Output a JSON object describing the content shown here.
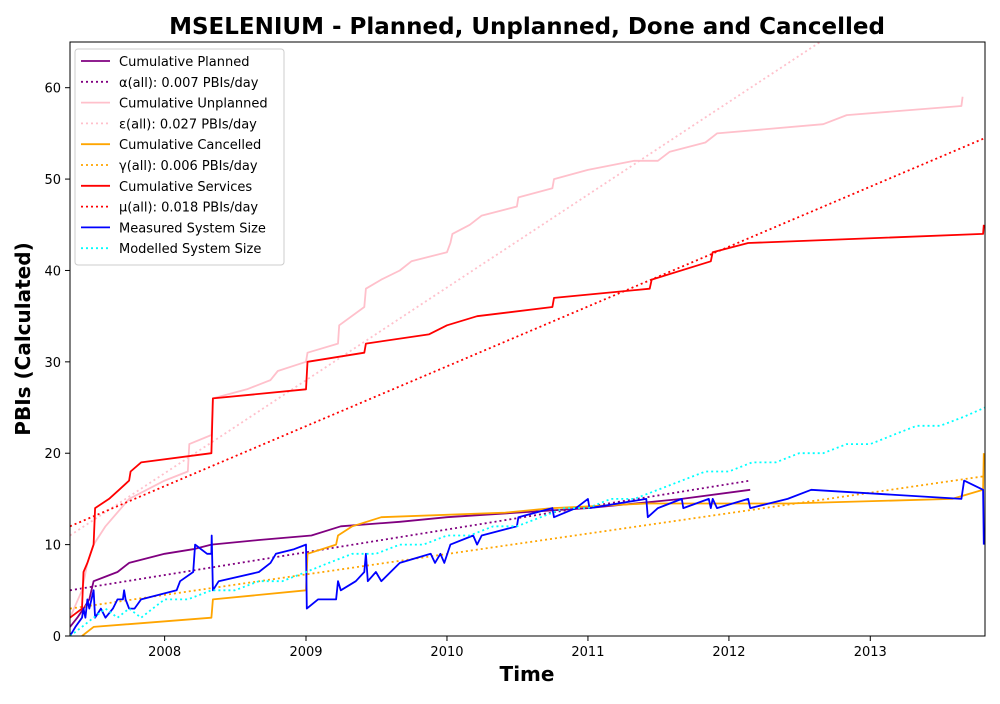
{
  "chart_data": {
    "type": "line",
    "title": "MSELENIUM - Planned, Unplanned, Done  and Cancelled",
    "xlabel": "Time",
    "ylabel": "PBIs (Calculated)",
    "xlim": [
      "2007-05-01",
      "2013-10-25"
    ],
    "ylim": [
      0,
      65
    ],
    "x_ticks": [
      {
        "date": "2008-01-01",
        "label": "2008"
      },
      {
        "date": "2009-01-01",
        "label": "2009"
      },
      {
        "date": "2010-01-01",
        "label": "2010"
      },
      {
        "date": "2011-01-01",
        "label": "2011"
      },
      {
        "date": "2012-01-01",
        "label": "2012"
      },
      {
        "date": "2013-01-01",
        "label": "2013"
      }
    ],
    "y_ticks": [
      0,
      10,
      20,
      30,
      40,
      50,
      60
    ],
    "grid": false,
    "legend_position": "top-left",
    "series": [
      {
        "name": "Cumulative Planned",
        "color": "#800080",
        "style": "solid",
        "points": [
          [
            "2007-05-01",
            1
          ],
          [
            "2007-05-20",
            2
          ],
          [
            "2007-06-05",
            3
          ],
          [
            "2007-06-20",
            4
          ],
          [
            "2007-07-01",
            6
          ],
          [
            "2007-08-01",
            6.5
          ],
          [
            "2007-09-01",
            7
          ],
          [
            "2007-10-01",
            8
          ],
          [
            "2008-01-01",
            9
          ],
          [
            "2008-03-15",
            9.5
          ],
          [
            "2008-05-01",
            10
          ],
          [
            "2008-09-01",
            10.5
          ],
          [
            "2009-01-15",
            11
          ],
          [
            "2009-04-01",
            12
          ],
          [
            "2009-09-01",
            12.5
          ],
          [
            "2010-01-01",
            13
          ],
          [
            "2011-01-01",
            14
          ],
          [
            "2011-09-01",
            15
          ],
          [
            "2012-02-25",
            16
          ]
        ]
      },
      {
        "name": "α(all): 0.007 PBIs/day",
        "color": "#800080",
        "style": "dotted",
        "points": [
          [
            "2007-05-01",
            5
          ],
          [
            "2012-02-25",
            17
          ]
        ]
      },
      {
        "name": "Cumulative Unplanned",
        "color": "#ffc0cb",
        "style": "solid",
        "points": [
          [
            "2007-05-01",
            2
          ],
          [
            "2007-06-01",
            5
          ],
          [
            "2007-06-15",
            8
          ],
          [
            "2007-07-01",
            10
          ],
          [
            "2007-08-01",
            12
          ],
          [
            "2007-10-01",
            15
          ],
          [
            "2008-01-01",
            17
          ],
          [
            "2008-03-01",
            18
          ],
          [
            "2008-03-05",
            21
          ],
          [
            "2008-05-01",
            22
          ],
          [
            "2008-05-05",
            26
          ],
          [
            "2008-08-01",
            27
          ],
          [
            "2008-10-01",
            28
          ],
          [
            "2008-10-20",
            29
          ],
          [
            "2009-01-01",
            30
          ],
          [
            "2009-01-05",
            31
          ],
          [
            "2009-03-25",
            32
          ],
          [
            "2009-03-28",
            34
          ],
          [
            "2009-06-01",
            36
          ],
          [
            "2009-06-05",
            38
          ],
          [
            "2009-07-15",
            39
          ],
          [
            "2009-09-01",
            40
          ],
          [
            "2009-10-01",
            41
          ],
          [
            "2010-01-01",
            42
          ],
          [
            "2010-01-10",
            43
          ],
          [
            "2010-01-15",
            44
          ],
          [
            "2010-03-01",
            45
          ],
          [
            "2010-04-01",
            46
          ],
          [
            "2010-07-01",
            47
          ],
          [
            "2010-07-05",
            48
          ],
          [
            "2010-10-01",
            49
          ],
          [
            "2010-10-05",
            50
          ],
          [
            "2011-01-01",
            51
          ],
          [
            "2011-05-01",
            52
          ],
          [
            "2011-07-01",
            52
          ],
          [
            "2011-08-01",
            53
          ],
          [
            "2011-11-01",
            54
          ],
          [
            "2011-12-01",
            55
          ],
          [
            "2012-09-01",
            56
          ],
          [
            "2012-11-01",
            57
          ],
          [
            "2013-08-25",
            58
          ],
          [
            "2013-08-28",
            59
          ]
        ]
      },
      {
        "name": "ε(all): 0.027 PBIs/day",
        "color": "#ffc0cb",
        "style": "dotted",
        "points": [
          [
            "2007-05-01",
            11
          ],
          [
            "2012-08-24",
            65
          ]
        ]
      },
      {
        "name": "Cumulative Cancelled",
        "color": "#ffa500",
        "style": "solid",
        "points": [
          [
            "2007-06-01",
            0
          ],
          [
            "2007-07-01",
            1
          ],
          [
            "2008-05-01",
            2
          ],
          [
            "2008-05-05",
            4
          ],
          [
            "2009-01-01",
            5
          ],
          [
            "2009-01-05",
            9
          ],
          [
            "2009-03-20",
            10
          ],
          [
            "2009-03-25",
            11
          ],
          [
            "2009-05-01",
            12
          ],
          [
            "2009-07-15",
            13
          ],
          [
            "2010-06-01",
            13.5
          ],
          [
            "2010-10-01",
            14
          ],
          [
            "2011-06-01",
            14.5
          ],
          [
            "2012-06-01",
            14.5
          ],
          [
            "2013-08-01",
            15
          ],
          [
            "2013-10-20",
            16
          ],
          [
            "2013-10-22",
            20
          ]
        ]
      },
      {
        "name": "γ(all): 0.006 PBIs/day",
        "color": "#ffa500",
        "style": "dotted",
        "points": [
          [
            "2007-05-01",
            3
          ],
          [
            "2013-10-25",
            17.5
          ]
        ]
      },
      {
        "name": "Cumulative Services",
        "color": "#ff0000",
        "style": "solid",
        "points": [
          [
            "2007-05-01",
            2
          ],
          [
            "2007-06-01",
            3
          ],
          [
            "2007-06-05",
            7
          ],
          [
            "2007-06-15",
            8
          ],
          [
            "2007-07-01",
            10
          ],
          [
            "2007-07-05",
            14
          ],
          [
            "2007-08-10",
            15
          ],
          [
            "2007-09-05",
            16
          ],
          [
            "2007-10-01",
            17
          ],
          [
            "2007-10-05",
            18
          ],
          [
            "2007-11-01",
            19
          ],
          [
            "2008-05-01",
            20
          ],
          [
            "2008-05-05",
            26
          ],
          [
            "2009-01-01",
            27
          ],
          [
            "2009-01-05",
            30
          ],
          [
            "2009-06-01",
            31
          ],
          [
            "2009-06-05",
            32
          ],
          [
            "2009-11-15",
            33
          ],
          [
            "2010-01-01",
            34
          ],
          [
            "2010-03-20",
            35
          ],
          [
            "2010-10-01",
            36
          ],
          [
            "2010-10-05",
            37
          ],
          [
            "2011-06-10",
            38
          ],
          [
            "2011-06-15",
            39
          ],
          [
            "2011-11-15",
            41
          ],
          [
            "2011-11-20",
            42
          ],
          [
            "2012-02-20",
            43
          ],
          [
            "2013-10-20",
            44
          ],
          [
            "2013-10-22",
            45
          ]
        ]
      },
      {
        "name": "μ(all): 0.018 PBIs/day",
        "color": "#ff0000",
        "style": "dotted",
        "points": [
          [
            "2007-05-01",
            12
          ],
          [
            "2013-10-25",
            54.5
          ]
        ]
      },
      {
        "name": "Measured System Size",
        "color": "#0000ff",
        "style": "solid",
        "points": [
          [
            "2007-05-01",
            0
          ],
          [
            "2007-05-15",
            1
          ],
          [
            "2007-06-01",
            2
          ],
          [
            "2007-06-05",
            3
          ],
          [
            "2007-06-10",
            2
          ],
          [
            "2007-06-15",
            4
          ],
          [
            "2007-06-20",
            3
          ],
          [
            "2007-07-01",
            5
          ],
          [
            "2007-07-05",
            2
          ],
          [
            "2007-07-20",
            3
          ],
          [
            "2007-08-01",
            2
          ],
          [
            "2007-08-20",
            3
          ],
          [
            "2007-09-01",
            4
          ],
          [
            "2007-09-15",
            4
          ],
          [
            "2007-09-18",
            5
          ],
          [
            "2007-09-22",
            4
          ],
          [
            "2007-10-01",
            3
          ],
          [
            "2007-10-15",
            3
          ],
          [
            "2007-11-01",
            4
          ],
          [
            "2008-02-01",
            5
          ],
          [
            "2008-02-10",
            6
          ],
          [
            "2008-03-15",
            7
          ],
          [
            "2008-03-20",
            10
          ],
          [
            "2008-04-20",
            9
          ],
          [
            "2008-05-01",
            9
          ],
          [
            "2008-05-02",
            11
          ],
          [
            "2008-05-05",
            5
          ],
          [
            "2008-05-20",
            6
          ],
          [
            "2008-09-01",
            7
          ],
          [
            "2008-10-01",
            8
          ],
          [
            "2008-10-15",
            9
          ],
          [
            "2008-12-01",
            9.5
          ],
          [
            "2009-01-01",
            10
          ],
          [
            "2009-01-03",
            3
          ],
          [
            "2009-02-01",
            4
          ],
          [
            "2009-03-20",
            4
          ],
          [
            "2009-03-25",
            6
          ],
          [
            "2009-04-01",
            5
          ],
          [
            "2009-05-10",
            6
          ],
          [
            "2009-06-01",
            7
          ],
          [
            "2009-06-05",
            9
          ],
          [
            "2009-06-10",
            6
          ],
          [
            "2009-07-01",
            7
          ],
          [
            "2009-07-15",
            6
          ],
          [
            "2009-09-01",
            8
          ],
          [
            "2009-11-20",
            9
          ],
          [
            "2009-12-01",
            8
          ],
          [
            "2009-12-15",
            9
          ],
          [
            "2009-12-25",
            8
          ],
          [
            "2010-01-10",
            10
          ],
          [
            "2010-03-10",
            11
          ],
          [
            "2010-03-20",
            10
          ],
          [
            "2010-04-01",
            11
          ],
          [
            "2010-07-01",
            12
          ],
          [
            "2010-07-05",
            13
          ],
          [
            "2010-10-01",
            14
          ],
          [
            "2010-10-05",
            13
          ],
          [
            "2010-12-01",
            14
          ],
          [
            "2011-01-01",
            15
          ],
          [
            "2011-01-05",
            14
          ],
          [
            "2011-06-01",
            15
          ],
          [
            "2011-06-05",
            13
          ],
          [
            "2011-07-01",
            14
          ],
          [
            "2011-09-01",
            15
          ],
          [
            "2011-09-05",
            14
          ],
          [
            "2011-11-10",
            15
          ],
          [
            "2011-11-15",
            14
          ],
          [
            "2011-11-20",
            15
          ],
          [
            "2011-12-01",
            14
          ],
          [
            "2012-02-20",
            15
          ],
          [
            "2012-02-25",
            14
          ],
          [
            "2012-06-01",
            15
          ],
          [
            "2012-08-01",
            16
          ],
          [
            "2013-08-25",
            15
          ],
          [
            "2013-09-01",
            17
          ],
          [
            "2013-10-20",
            16
          ],
          [
            "2013-10-22",
            10
          ]
        ]
      },
      {
        "name": "Modelled System Size",
        "color": "#00ffff",
        "style": "dotted",
        "points": [
          [
            "2007-05-01",
            0
          ],
          [
            "2007-06-01",
            1
          ],
          [
            "2007-07-01",
            2
          ],
          [
            "2007-08-01",
            3
          ],
          [
            "2007-09-01",
            2
          ],
          [
            "2007-10-01",
            3
          ],
          [
            "2007-11-01",
            2
          ],
          [
            "2007-12-01",
            3
          ],
          [
            "2008-01-01",
            4
          ],
          [
            "2008-03-01",
            4
          ],
          [
            "2008-05-01",
            5
          ],
          [
            "2008-07-01",
            5
          ],
          [
            "2008-09-01",
            6
          ],
          [
            "2008-11-01",
            6
          ],
          [
            "2009-01-01",
            7
          ],
          [
            "2009-03-01",
            8
          ],
          [
            "2009-05-01",
            9
          ],
          [
            "2009-07-01",
            9
          ],
          [
            "2009-09-01",
            10
          ],
          [
            "2009-11-01",
            10
          ],
          [
            "2010-01-01",
            11
          ],
          [
            "2010-03-01",
            11
          ],
          [
            "2010-05-01",
            12
          ],
          [
            "2010-07-01",
            12
          ],
          [
            "2010-09-01",
            13
          ],
          [
            "2010-11-01",
            14
          ],
          [
            "2011-01-01",
            14
          ],
          [
            "2011-03-01",
            15
          ],
          [
            "2011-05-01",
            15
          ],
          [
            "2011-07-01",
            16
          ],
          [
            "2011-09-01",
            17
          ],
          [
            "2011-11-01",
            18
          ],
          [
            "2012-01-01",
            18
          ],
          [
            "2012-03-01",
            19
          ],
          [
            "2012-05-01",
            19
          ],
          [
            "2012-07-01",
            20
          ],
          [
            "2012-09-01",
            20
          ],
          [
            "2012-11-01",
            21
          ],
          [
            "2013-01-01",
            21
          ],
          [
            "2013-03-01",
            22
          ],
          [
            "2013-05-01",
            23
          ],
          [
            "2013-07-01",
            23
          ],
          [
            "2013-09-01",
            24
          ],
          [
            "2013-10-25",
            25
          ]
        ]
      }
    ]
  }
}
